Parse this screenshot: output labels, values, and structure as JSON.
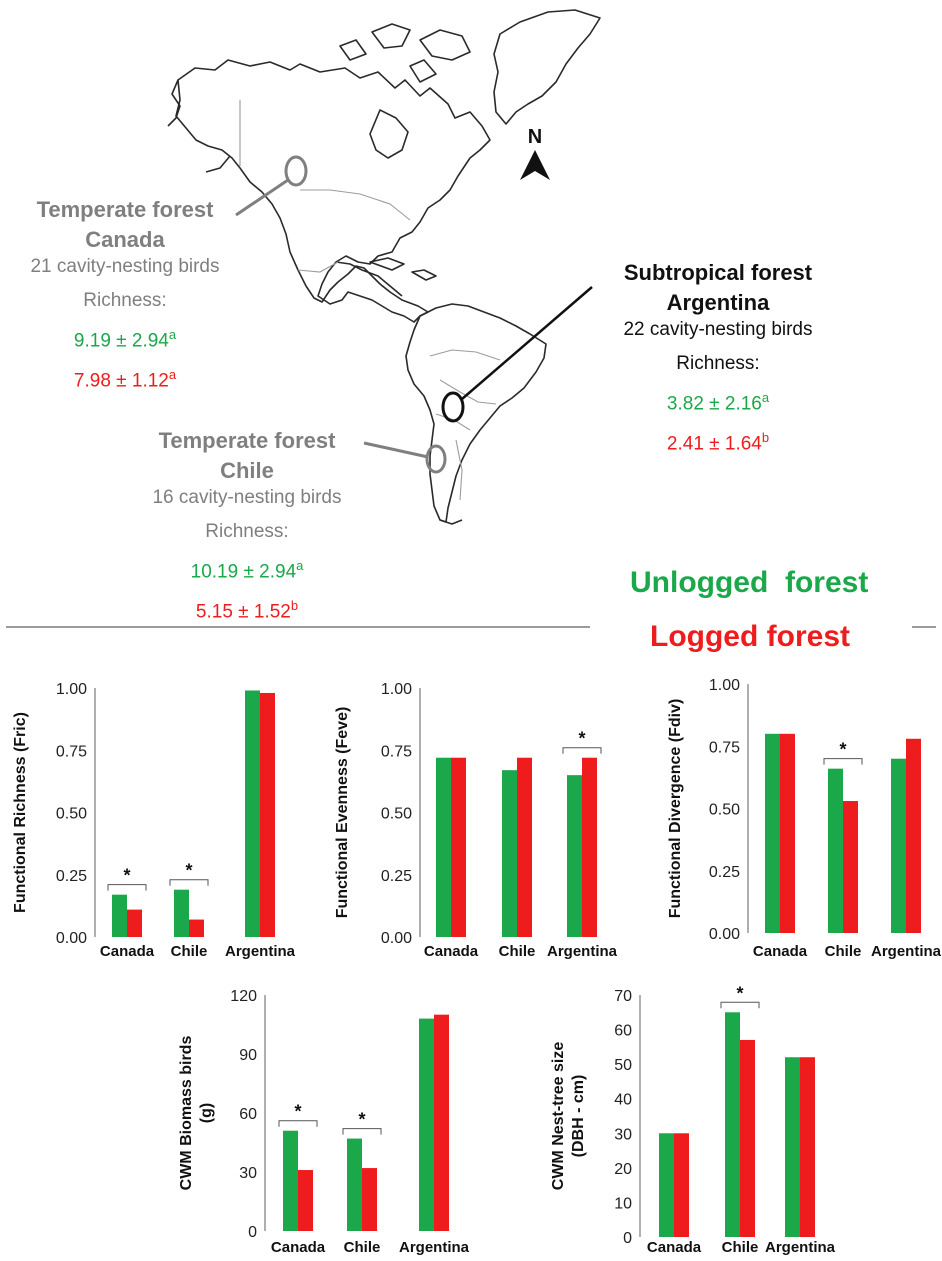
{
  "map": {
    "north_label": "N",
    "sites": {
      "canada": {
        "title_line1": "Temperate forest",
        "title_line2": "Canada",
        "species": "21 cavity-nesting birds",
        "richness_label": "Richness:",
        "unlogged_value": "9.19 ± 2.94",
        "unlogged_sup": "a",
        "logged_value": "7.98 ± 1.12",
        "logged_sup": "a"
      },
      "argentina": {
        "title_line1": "Subtropical forest",
        "title_line2": "Argentina",
        "species": "22 cavity-nesting birds",
        "richness_label": "Richness:",
        "unlogged_value": "3.82 ± 2.16",
        "unlogged_sup": "a",
        "logged_value": "2.41 ± 1.64",
        "logged_sup": "b"
      },
      "chile": {
        "title_line1": "Temperate forest",
        "title_line2": "Chile",
        "species": "16 cavity-nesting birds",
        "richness_label": "Richness:",
        "unlogged_value": "10.19 ± 2.94",
        "unlogged_sup": "a",
        "logged_value": "5.15 ± 1.52",
        "logged_sup": "b"
      }
    }
  },
  "legend": {
    "unlogged": "Unlogged  forest",
    "logged": "Logged forest"
  },
  "colors": {
    "unlogged": "#1aa84a",
    "logged": "#ee1c1c",
    "site_grey": "#7f7f7f"
  },
  "chart_data": [
    {
      "type": "bar",
      "ylabel": "Functional Richness (Fric)",
      "categories": [
        "Canada",
        "Chile",
        "Argentina"
      ],
      "series": [
        {
          "name": "Unlogged  forest",
          "values": [
            0.17,
            0.19,
            0.99
          ]
        },
        {
          "name": "Logged forest",
          "values": [
            0.11,
            0.07,
            0.98
          ]
        }
      ],
      "yticks": [
        "0.00",
        "0.25",
        "0.50",
        "0.75",
        "1.00"
      ],
      "ylim": [
        0,
        1
      ],
      "significance": [
        "*",
        "*",
        ""
      ]
    },
    {
      "type": "bar",
      "ylabel": "Functional Evenness (Feve)",
      "categories": [
        "Canada",
        "Chile",
        "Argentina"
      ],
      "series": [
        {
          "name": "Unlogged  forest",
          "values": [
            0.72,
            0.67,
            0.65
          ]
        },
        {
          "name": "Logged forest",
          "values": [
            0.72,
            0.72,
            0.72
          ]
        }
      ],
      "yticks": [
        "0.00",
        "0.25",
        "0.50",
        "0.75",
        "1.00"
      ],
      "ylim": [
        0,
        1
      ],
      "significance": [
        "",
        "",
        "*"
      ]
    },
    {
      "type": "bar",
      "ylabel": "Functional Divergence (Fdiv)",
      "categories": [
        "Canada",
        "Chile",
        "Argentina"
      ],
      "series": [
        {
          "name": "Unlogged  forest",
          "values": [
            0.8,
            0.66,
            0.7
          ]
        },
        {
          "name": "Logged forest",
          "values": [
            0.8,
            0.53,
            0.78
          ]
        }
      ],
      "yticks": [
        "0.00",
        "0.25",
        "0.50",
        "0.75",
        "1.00"
      ],
      "ylim": [
        0,
        1
      ],
      "significance": [
        "",
        "*",
        ""
      ]
    },
    {
      "type": "bar",
      "ylabel": "CWM  Biomass birds (g)",
      "categories": [
        "Canada",
        "Chile",
        "Argentina"
      ],
      "series": [
        {
          "name": "Unlogged  forest",
          "values": [
            51,
            47,
            108
          ]
        },
        {
          "name": "Logged forest",
          "values": [
            31,
            32,
            110
          ]
        }
      ],
      "yticks": [
        "0",
        "30",
        "60",
        "90",
        "120"
      ],
      "ylim": [
        0,
        120
      ],
      "significance": [
        "*",
        "*",
        ""
      ]
    },
    {
      "type": "bar",
      "ylabel": "CWM  Nest-tree size (DBH - cm)",
      "categories": [
        "Canada",
        "Chile",
        "Argentina"
      ],
      "series": [
        {
          "name": "Unlogged  forest",
          "values": [
            30,
            65,
            52
          ]
        },
        {
          "name": "Logged forest",
          "values": [
            30,
            57,
            52
          ]
        }
      ],
      "yticks": [
        "0",
        "10",
        "20",
        "30",
        "40",
        "50",
        "60",
        "70"
      ],
      "ylim": [
        0,
        70
      ],
      "significance": [
        "",
        "*",
        ""
      ]
    }
  ]
}
